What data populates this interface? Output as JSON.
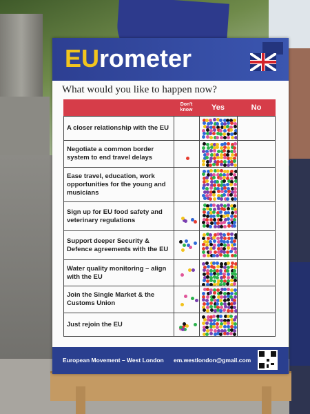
{
  "poster": {
    "title_eu": "EU",
    "title_rest": "rometer",
    "question": "What would you like to happen now?",
    "headers": {
      "dont_know": "Don't know",
      "yes": "Yes",
      "no": "No"
    },
    "rows": [
      {
        "label": "A closer relationship with the EU",
        "height": 34,
        "dk_dots": 0
      },
      {
        "label": "Negotiate a common border system to end travel delays",
        "height": 38,
        "dk_dots": 1
      },
      {
        "label": "Ease travel, education, work opportunities for the young and musicians",
        "height": 49,
        "dk_dots": 0
      },
      {
        "label": "Sign up for EU food safety and veterinary regulations",
        "height": 41,
        "dk_dots": 6
      },
      {
        "label": "Support deeper Security & Defence agreements with the EU",
        "height": 41,
        "dk_dots": 7
      },
      {
        "label": "Water quality monitoring – align with the EU",
        "height": 37,
        "dk_dots": 3
      },
      {
        "label": "Join the Single Market & the Customs Union",
        "height": 38,
        "dk_dots": 4
      },
      {
        "label": "Just rejoin the EU",
        "height": 33,
        "dk_dots": 9
      }
    ],
    "footer_org": "European Movement – West London",
    "footer_email": "em.westlondon@gmail.com"
  },
  "colors": {
    "header_red": "#d63d49",
    "footer_blue": "#2a3f8f",
    "title_yellow": "#f2c51d",
    "dots": [
      "#e63b2e",
      "#2f6ad8",
      "#2bb24c",
      "#f2c21b",
      "#e0559a",
      "#7a3fb0",
      "#111111"
    ]
  }
}
